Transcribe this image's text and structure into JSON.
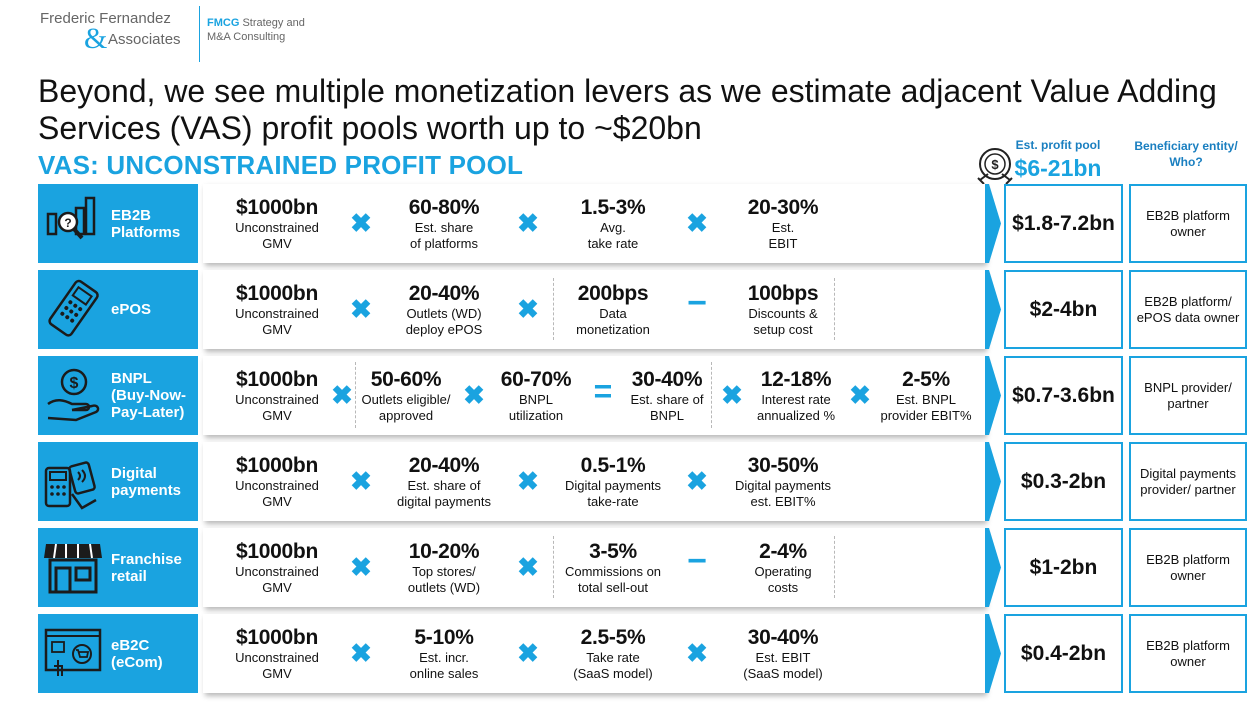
{
  "header": {
    "logo_line1": "Frederic Fernandez",
    "logo_amp": "&",
    "logo_line2": "Associates",
    "tag_bold": "FMCG",
    "tag_rest1": " Strategy and",
    "tag_rest2": "M&A Consulting"
  },
  "title": "Beyond, we see multiple monetization levers as we estimate adjacent Value Adding Services (VAS) profit pools worth up to ~$20bn",
  "subtitle": "VAS: UNCONSTRAINED PROFIT POOL",
  "column_headers": {
    "pool_label": "Est. profit pool",
    "pool_total": "$6-21bn",
    "beneficiary_label": "Beneficiary entity/ Who?"
  },
  "colors": {
    "accent": "#1aa3e0",
    "dark_accent": "#1a7fc0"
  },
  "rows": [
    {
      "label_line1": "EB2B",
      "label_line2": "Platforms",
      "label_line3": "",
      "icon": "chart-search-icon",
      "c1_big": "$1000bn",
      "c1_sm1": "Unconstrained",
      "c1_sm2": "GMV",
      "op1": "✖",
      "c2_big": "60-80%",
      "c2_sm1": "Est. share",
      "c2_sm2": "of platforms",
      "op2": "✖",
      "c3_big": "1.5-3%",
      "c3_sm1": "Avg.",
      "c3_sm2": "take rate",
      "op3": "✖",
      "c4_big": "20-30%",
      "c4_sm1": "Est.",
      "c4_sm2": "EBIT",
      "pool": "$1.8-7.2bn",
      "benef": "EB2B platform owner"
    },
    {
      "label_line1": "ePOS",
      "label_line2": "",
      "label_line3": "",
      "icon": "pos-terminal-icon",
      "c1_big": "$1000bn",
      "c1_sm1": "Unconstrained",
      "c1_sm2": "GMV",
      "op1": "✖",
      "c2_big": "20-40%",
      "c2_sm1": "Outlets (WD)",
      "c2_sm2": "deploy ePOS",
      "op2": "✖",
      "c3_big": "200bps",
      "c3_sm1": "Data",
      "c3_sm2": "monetization",
      "op3": "−",
      "c4_big": "100bps",
      "c4_sm1": "Discounts &",
      "c4_sm2": "setup cost",
      "pool": "$2-4bn",
      "benef": "EB2B platform/ ePOS data owner"
    },
    {
      "label_line1": "BNPL",
      "label_line2": "(Buy-Now-",
      "label_line3": "Pay-Later)",
      "icon": "money-hand-icon",
      "c1_big": "$1000bn",
      "c1_sm1": "Unconstrained",
      "c1_sm2": "GMV",
      "op1": "✖",
      "c2_big": "50-60%",
      "c2_sm1": "Outlets eligible/",
      "c2_sm2": "approved",
      "op2": "✖",
      "c3_big": "60-70%",
      "c3_sm1": "BNPL",
      "c3_sm2": "utilization",
      "op3": "=",
      "c4_big": "30-40%",
      "c4_sm1": "Est. share of",
      "c4_sm2": "BNPL",
      "op4": "✖",
      "c5_big": "12-18%",
      "c5_sm1": "Interest rate",
      "c5_sm2": "annualized %",
      "op5": "✖",
      "c6_big": "2-5%",
      "c6_sm1": "Est. BNPL",
      "c6_sm2": "provider EBIT%",
      "pool": "$0.7-3.6bn",
      "benef": "BNPL provider/ partner"
    },
    {
      "label_line1": "Digital",
      "label_line2": "payments",
      "label_line3": "",
      "icon": "contactless-payment-icon",
      "c1_big": "$1000bn",
      "c1_sm1": "Unconstrained",
      "c1_sm2": "GMV",
      "op1": "✖",
      "c2_big": "20-40%",
      "c2_sm1": "Est. share of",
      "c2_sm2": "digital payments",
      "op2": "✖",
      "c3_big": "0.5-1%",
      "c3_sm1": "Digital payments",
      "c3_sm2": "take-rate",
      "op3": "✖",
      "c4_big": "30-50%",
      "c4_sm1": "Digital payments",
      "c4_sm2": "est. EBIT%",
      "pool": "$0.3-2bn",
      "benef": "Digital payments provider/ partner"
    },
    {
      "label_line1": "Franchise",
      "label_line2": "retail",
      "label_line3": "",
      "icon": "storefront-icon",
      "c1_big": "$1000bn",
      "c1_sm1": "Unconstrained",
      "c1_sm2": "GMV",
      "op1": "✖",
      "c2_big": "10-20%",
      "c2_sm1": "Top stores/",
      "c2_sm2": "outlets (WD)",
      "op2": "✖",
      "c3_big": "3-5%",
      "c3_sm1": "Commissions on",
      "c3_sm2": "total sell-out",
      "op3": "−",
      "c4_big": "2-4%",
      "c4_sm1": "Operating",
      "c4_sm2": "costs",
      "pool": "$1-2bn",
      "benef": "EB2B platform owner"
    },
    {
      "label_line1": "eB2C",
      "label_line2": "(eCom)",
      "label_line3": "",
      "icon": "ecommerce-screen-icon",
      "c1_big": "$1000bn",
      "c1_sm1": "Unconstrained",
      "c1_sm2": "GMV",
      "op1": "✖",
      "c2_big": "5-10%",
      "c2_sm1": "Est. incr.",
      "c2_sm2": "online sales",
      "op2": "✖",
      "c3_big": "2.5-5%",
      "c3_sm1": "Take rate",
      "c3_sm2": "(SaaS model)",
      "op3": "✖",
      "c4_big": "30-40%",
      "c4_sm1": "Est. EBIT",
      "c4_sm2": "(SaaS model)",
      "pool": "$0.4-2bn",
      "benef": "EB2B platform owner"
    }
  ]
}
